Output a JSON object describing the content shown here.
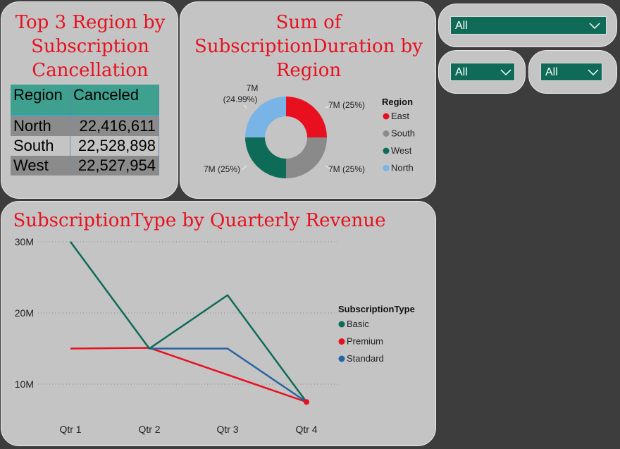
{
  "table_card": {
    "title_lines": [
      "Top 3 Region by",
      "Subscription",
      "Cancellation"
    ],
    "columns": [
      "Region",
      "Canceled"
    ],
    "rows": [
      {
        "region": "North",
        "canceled": "22,416,611"
      },
      {
        "region": "South",
        "canceled": "22,528,898"
      },
      {
        "region": "West",
        "canceled": "22,527,954"
      }
    ]
  },
  "donut_card": {
    "title_lines": [
      "Sum of",
      "SubscriptionDuration by",
      "Region"
    ]
  },
  "line_card": {
    "title": "SubscriptionType by Quarterly Revenue"
  },
  "slicers": [
    {
      "value": "All"
    },
    {
      "value": "All"
    },
    {
      "value": "All"
    }
  ],
  "colors": {
    "east": "#e8101e",
    "south": "#8a8a8a",
    "west": "#0d6b57",
    "north": "#78b4e6",
    "basic": "#0d6b57",
    "premium": "#e8101e",
    "standard": "#2565a3"
  },
  "chart_data": [
    {
      "type": "pie",
      "title": "Sum of SubscriptionDuration by Region",
      "legend_title": "Region",
      "legend_position": "right",
      "slices": [
        {
          "name": "East",
          "value": 25,
          "label": "7M (25%)"
        },
        {
          "name": "South",
          "value": 25,
          "label": "7M (25%)"
        },
        {
          "name": "West",
          "value": 25,
          "label": "7M (25%)"
        },
        {
          "name": "North",
          "value": 24.99,
          "label_top": "7M",
          "label_bottom": "(24.99%)"
        }
      ]
    },
    {
      "type": "line",
      "title": "SubscriptionType by Quarterly Revenue",
      "legend_title": "SubscriptionType",
      "legend_position": "right",
      "categories": [
        "Qtr 1",
        "Qtr 2",
        "Qtr 3",
        "Qtr 4"
      ],
      "yticks": [
        "10M",
        "20M",
        "30M"
      ],
      "ytick_values": [
        10,
        20,
        30
      ],
      "ylim": [
        5,
        32
      ],
      "grid": true,
      "series": [
        {
          "name": "Basic",
          "values": [
            30,
            15,
            22.5,
            7.5
          ]
        },
        {
          "name": "Premium",
          "values": [
            15,
            15.1,
            null,
            7.5
          ]
        },
        {
          "name": "Standard",
          "values": [
            null,
            15,
            15,
            7.5
          ]
        }
      ]
    }
  ]
}
